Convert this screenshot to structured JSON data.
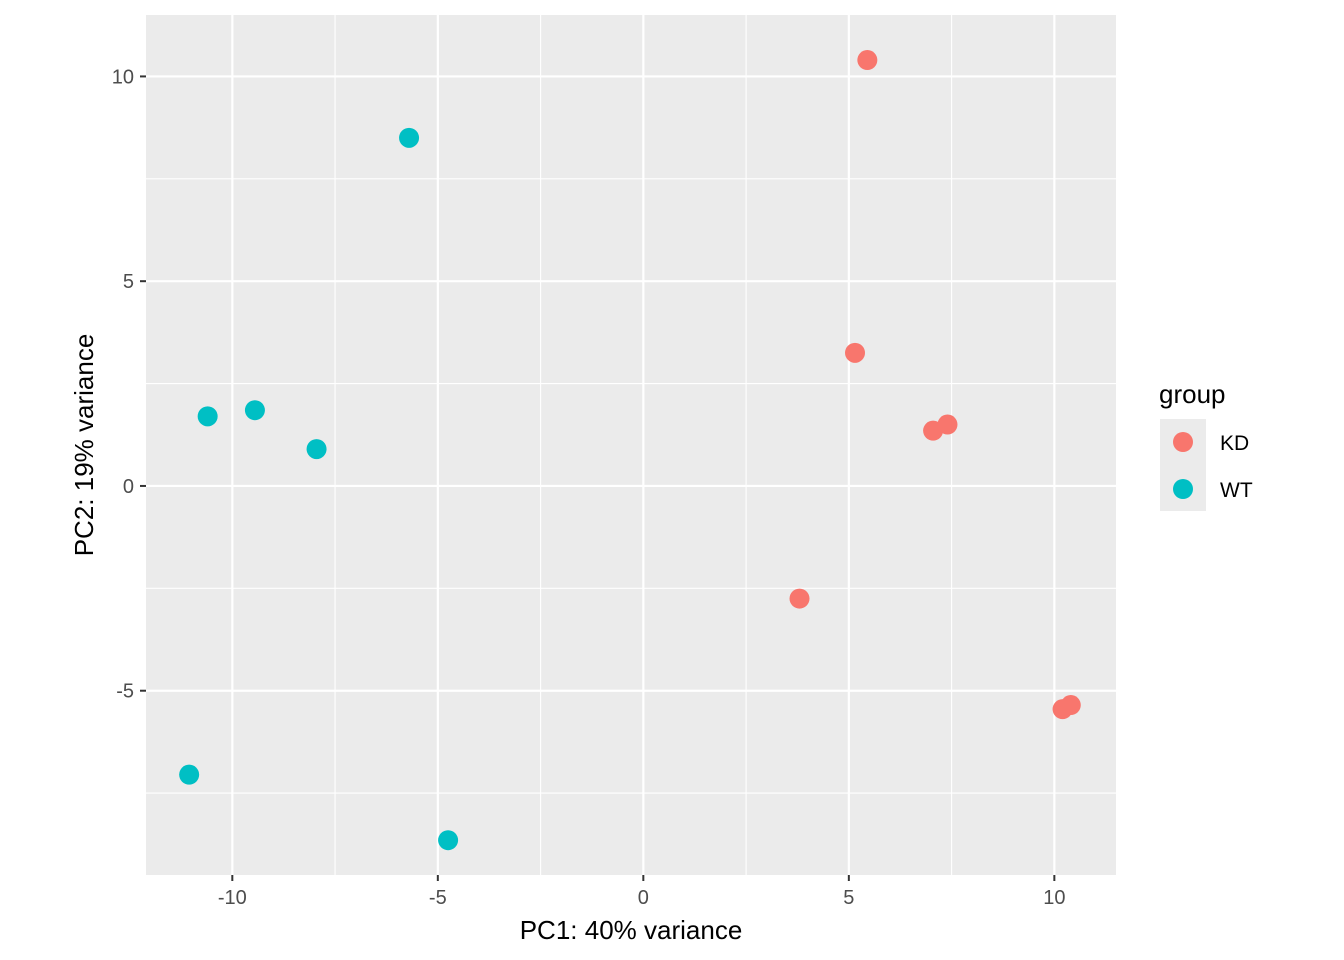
{
  "chart_data": {
    "type": "scatter",
    "title": "",
    "xlabel": "PC1: 40% variance",
    "ylabel": "PC2: 19% variance",
    "xlim": [
      -12.1,
      11.5
    ],
    "ylim": [
      -9.5,
      11.5
    ],
    "x_ticks": [
      -10,
      -5,
      0,
      5,
      10
    ],
    "x_tick_labels": [
      "-10",
      "-5",
      "0",
      "5",
      "10"
    ],
    "y_ticks": [
      -5,
      0,
      5,
      10
    ],
    "y_tick_labels": [
      "-5",
      "0",
      "5",
      "10"
    ],
    "grid": true,
    "legend": {
      "title": "group",
      "position": "right"
    },
    "series": [
      {
        "name": "KD",
        "color": "#F8766D",
        "points": [
          {
            "x": 5.45,
            "y": 10.4
          },
          {
            "x": 5.15,
            "y": 3.25
          },
          {
            "x": 7.05,
            "y": 1.35
          },
          {
            "x": 7.4,
            "y": 1.5
          },
          {
            "x": 3.8,
            "y": -2.75
          },
          {
            "x": 10.2,
            "y": -5.45
          },
          {
            "x": 10.4,
            "y": -5.35
          }
        ]
      },
      {
        "name": "WT",
        "color": "#00BFC4",
        "points": [
          {
            "x": -5.7,
            "y": 8.5
          },
          {
            "x": -10.6,
            "y": 1.7
          },
          {
            "x": -9.45,
            "y": 1.85
          },
          {
            "x": -7.95,
            "y": 0.9
          },
          {
            "x": -11.05,
            "y": -7.05
          },
          {
            "x": -4.75,
            "y": -8.65
          }
        ]
      }
    ]
  }
}
